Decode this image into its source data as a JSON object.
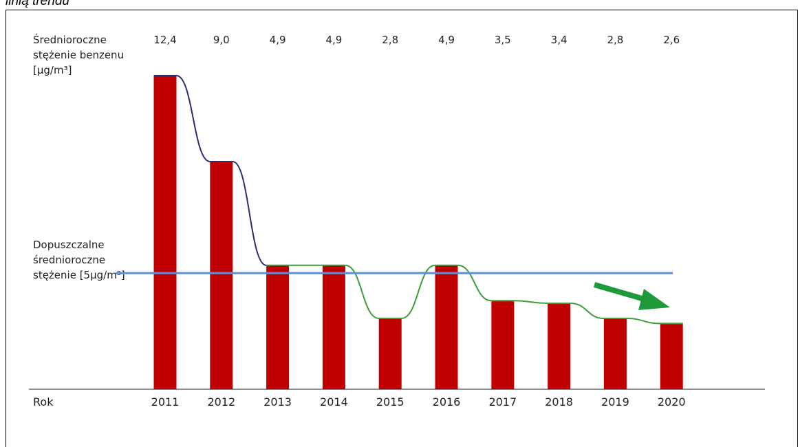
{
  "caption": "linią trendu",
  "chart_data": {
    "type": "bar",
    "title": "",
    "row_label": "Średnioroczne stężenie benzenu [µg/m³]",
    "row_label_lines": [
      "Średnioroczne",
      "stężenie benzenu",
      "[µg/m³]"
    ],
    "xlabel": "Rok",
    "categories": [
      "2011",
      "2012",
      "2013",
      "2014",
      "2015",
      "2016",
      "2017",
      "2018",
      "2019",
      "2020"
    ],
    "values": [
      12.4,
      9.0,
      4.9,
      4.9,
      2.8,
      4.9,
      3.5,
      3.4,
      2.8,
      2.6
    ],
    "value_labels": [
      "12,4",
      "9,0",
      "4,9",
      "4,9",
      "2,8",
      "4,9",
      "3,5",
      "3,4",
      "2,8",
      "2,6"
    ],
    "ylim": [
      0,
      12.4
    ],
    "limit": {
      "value": 5,
      "label": "Dopuszczalne średnioroczne stężenie [5µg/m³]",
      "label_lines": [
        "Dopuszczalne",
        "średnioroczne",
        "stężenie [5µg/m³]"
      ],
      "color": "#5b8fd6"
    },
    "colors": {
      "bar": "#c00000",
      "trend_above_limit": "#2b2d6e",
      "trend_below_limit": "#3a9e3a",
      "arrow": "#1f9a3a",
      "axis": "#222222"
    },
    "arrow_direction": "down-right",
    "grid": false
  }
}
